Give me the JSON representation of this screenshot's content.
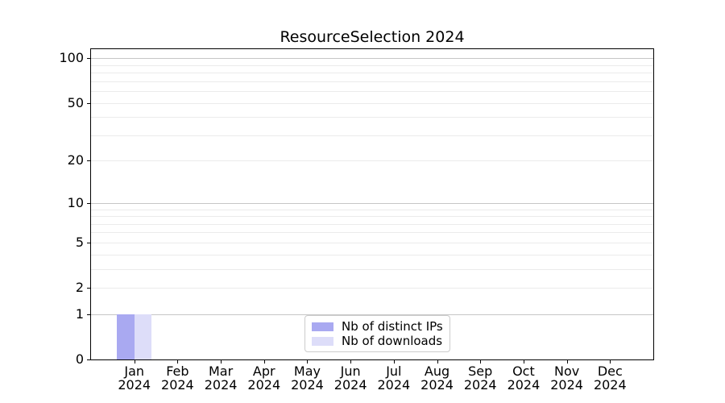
{
  "chart_data": {
    "type": "bar",
    "title": "ResourceSelection 2024",
    "xlabel": "",
    "ylabel": "",
    "yscale": "log1p",
    "ylim": [
      0,
      115
    ],
    "categories": [
      [
        "Jan",
        "2024"
      ],
      [
        "Feb",
        "2024"
      ],
      [
        "Mar",
        "2024"
      ],
      [
        "Apr",
        "2024"
      ],
      [
        "May",
        "2024"
      ],
      [
        "Jun",
        "2024"
      ],
      [
        "Jul",
        "2024"
      ],
      [
        "Aug",
        "2024"
      ],
      [
        "Sep",
        "2024"
      ],
      [
        "Oct",
        "2024"
      ],
      [
        "Nov",
        "2024"
      ],
      [
        "Dec",
        "2024"
      ]
    ],
    "series": [
      {
        "name": "Nb of distinct IPs",
        "color": "#a9a9f1",
        "values": [
          1,
          0,
          0,
          0,
          0,
          0,
          0,
          0,
          0,
          0,
          0,
          0
        ]
      },
      {
        "name": "Nb of downloads",
        "color": "#ddddf9",
        "values": [
          1,
          0,
          0,
          0,
          0,
          0,
          0,
          0,
          0,
          0,
          0,
          0
        ]
      }
    ],
    "yticks": [
      {
        "value": 0,
        "label": "0"
      },
      {
        "value": 1,
        "label": "1"
      },
      {
        "value": 2,
        "label": "2"
      },
      {
        "value": 5,
        "label": "5"
      },
      {
        "value": 10,
        "label": "10"
      },
      {
        "value": 20,
        "label": "20"
      },
      {
        "value": 50,
        "label": "50"
      },
      {
        "value": 100,
        "label": "100"
      }
    ],
    "grid": {
      "major_values": [
        1,
        10,
        100
      ],
      "minor_values": [
        2,
        3,
        4,
        5,
        6,
        7,
        8,
        9,
        20,
        30,
        40,
        50,
        60,
        70,
        80,
        90
      ],
      "major_color": "#c6c6c6",
      "minor_color": "#ebebeb"
    },
    "legend_position": "lower center"
  }
}
